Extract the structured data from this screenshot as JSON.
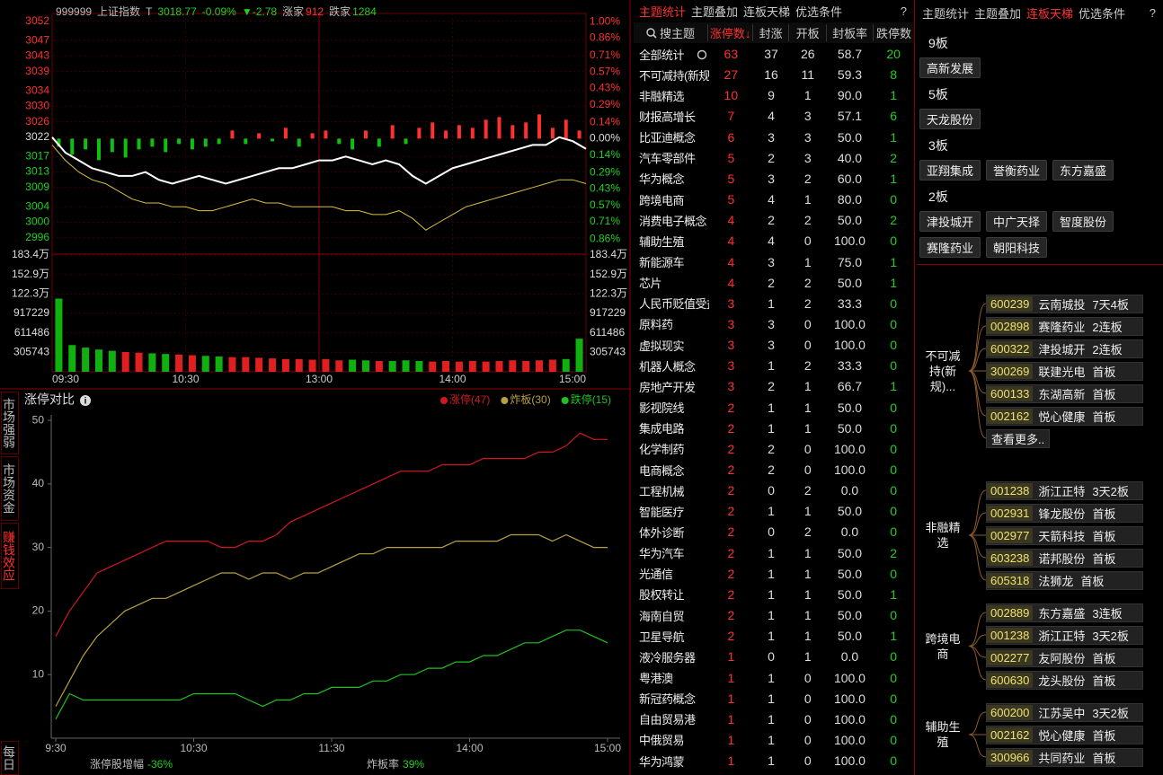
{
  "index_panel": {
    "code": "999999",
    "name": "上证指数",
    "t_label": "T",
    "price": "3018.77",
    "change_pct": "-0.09%",
    "change": "▼-2.78",
    "up_label": "涨家",
    "up_count": "912",
    "down_label": "跌家",
    "down_count": "1284"
  },
  "price_chart": {
    "type": "line",
    "ylim": [
      2992,
      3054
    ],
    "yticks": [
      3052,
      3047,
      3043,
      3039,
      3034,
      3030,
      3026,
      3022,
      3017,
      3013,
      3009,
      3004,
      3000,
      2996
    ],
    "y2lim": [
      -0.98,
      1.07
    ],
    "y2ticks": [
      {
        "value": 1.0,
        "label": "1.00%"
      },
      {
        "value": 0.86,
        "label": "0.86%"
      },
      {
        "value": 0.71,
        "label": "0.71%"
      },
      {
        "value": 0.57,
        "label": "0.57%"
      },
      {
        "value": 0.43,
        "label": "0.43%"
      },
      {
        "value": 0.29,
        "label": "0.29%"
      },
      {
        "value": 0.14,
        "label": "0.14%"
      },
      {
        "value": 0,
        "label": "0.00%"
      },
      {
        "value": -0.14,
        "label": "0.14%"
      },
      {
        "value": -0.29,
        "label": "0.29%"
      },
      {
        "value": -0.43,
        "label": "0.43%"
      },
      {
        "value": -0.57,
        "label": "0.57%"
      },
      {
        "value": -0.71,
        "label": "0.71%"
      },
      {
        "value": -0.86,
        "label": "0.86%"
      }
    ],
    "series": [
      {
        "color": "#ffffff",
        "values": [
          3022,
          3018,
          3016,
          3014,
          3013,
          3012,
          3012,
          3013,
          3011,
          3010,
          3011,
          3012,
          3011,
          3010,
          3011,
          3012,
          3013,
          3014,
          3014,
          3015,
          3016,
          3016,
          3017,
          3016,
          3015,
          3016,
          3015,
          3012,
          3010,
          3012,
          3014,
          3015,
          3016,
          3017,
          3018,
          3019,
          3020,
          3020,
          3022,
          3021,
          3019
        ]
      },
      {
        "color": "#d8c040",
        "values": [
          3020,
          3016,
          3013,
          3011,
          3010,
          3008,
          3006,
          3005,
          3005,
          3004,
          3004,
          3003,
          3003,
          3004,
          3005,
          3006,
          3005,
          3005,
          3004,
          3004,
          3004,
          3004,
          3003,
          3003,
          3002,
          3002,
          3003,
          3001,
          2998,
          3000,
          3002,
          3004,
          3005,
          3006,
          3007,
          3008,
          3009,
          3010,
          3011,
          3011,
          3010
        ]
      }
    ]
  },
  "strength_bars": {
    "type": "bar",
    "up_color": "#ff3030",
    "down_color": "#10c010",
    "values": [
      -3,
      -6,
      -4,
      -8,
      -5,
      -7,
      -4,
      -3,
      -5,
      -2,
      -4,
      -3,
      -2,
      3,
      -2,
      2,
      -1,
      4,
      -3,
      2,
      3,
      -2,
      -4,
      3,
      -3,
      5,
      -2,
      4,
      6,
      3,
      5,
      4,
      7,
      8,
      5,
      6,
      9,
      4,
      7,
      3
    ]
  },
  "volume_chart": {
    "type": "bar",
    "ylim": [
      0,
      1834458
    ],
    "yticks": [
      {
        "value": 1834458,
        "label": "183.4万"
      },
      {
        "value": 1528715,
        "label": "152.9万"
      },
      {
        "value": 1222972,
        "label": "122.3万"
      },
      917229,
      611486,
      305743
    ],
    "values": [
      1150000,
      420000,
      380000,
      350000,
      330000,
      310000,
      300000,
      290000,
      280000,
      270000,
      260000,
      250000,
      240000,
      230000,
      230000,
      220000,
      210000,
      200000,
      200000,
      190000,
      200000,
      180000,
      190000,
      180000,
      170000,
      170000,
      180000,
      170000,
      160000,
      170000,
      160000,
      170000,
      160000,
      170000,
      180000,
      170000,
      180000,
      190000,
      200000,
      520000
    ]
  },
  "time_axis": {
    "labels": [
      "09:30",
      "10:30",
      "13:00",
      "14:00",
      "15:00"
    ]
  },
  "side_tabs": [
    "市场强弱",
    "市场资金",
    "赚钱效应",
    "每日"
  ],
  "limit_chart": {
    "type": "line",
    "title": "涨停对比",
    "ylim": [
      0,
      51
    ],
    "yticks": [
      10,
      20,
      30,
      40,
      50
    ],
    "xlim": [
      0,
      240
    ],
    "xticks": [
      {
        "value": 0,
        "label": "9:30"
      },
      {
        "value": 60,
        "label": "10:30"
      },
      {
        "value": 120,
        "label": "11:30"
      },
      {
        "value": 180,
        "label": "14:00"
      },
      {
        "value": 240,
        "label": "15:00"
      }
    ],
    "series": [
      {
        "name": "涨停(47)",
        "color": "#d01820",
        "values": [
          16,
          20,
          23,
          26,
          27,
          28,
          29,
          30,
          31,
          31,
          31,
          31,
          30,
          30,
          31,
          31,
          32,
          34,
          35,
          36,
          37,
          38,
          39,
          40,
          41,
          42,
          42,
          42,
          43,
          43,
          43,
          44,
          44,
          44,
          44,
          45,
          45,
          46,
          48,
          47,
          47
        ]
      },
      {
        "name": "炸板(30)",
        "color": "#b8a040",
        "values": [
          5,
          9,
          13,
          16,
          18,
          20,
          21,
          22,
          22,
          23,
          24,
          25,
          26,
          26,
          25,
          26,
          26,
          25,
          26,
          26,
          27,
          28,
          29,
          29,
          30,
          30,
          30,
          30,
          30,
          31,
          31,
          31,
          31,
          32,
          32,
          32,
          31,
          32,
          31,
          30,
          30
        ]
      },
      {
        "name": "跌停(15)",
        "color": "#20c020",
        "values": [
          3,
          7,
          6,
          6,
          6,
          6,
          6,
          6,
          6,
          6,
          7,
          7,
          7,
          7,
          6,
          5,
          6,
          6,
          7,
          7,
          8,
          8,
          8,
          9,
          9,
          10,
          10,
          11,
          11,
          12,
          12,
          13,
          13,
          14,
          15,
          15,
          16,
          17,
          17,
          16,
          15
        ]
      }
    ],
    "footer": [
      {
        "label": "涨停股增幅",
        "value": "-36%"
      },
      {
        "label": "炸板率",
        "value": "39%"
      }
    ]
  },
  "theme_table": {
    "tabs": [
      "主题统计",
      "主题叠加",
      "连板天梯",
      "优选条件",
      "?"
    ],
    "columns": [
      "搜主题",
      "涨停数↓",
      "封涨",
      "开板",
      "封板率",
      "跌停数"
    ],
    "rows": [
      [
        "全部统计",
        "63",
        "37",
        "26",
        "58.7",
        "20"
      ],
      [
        "不可减持(新规)",
        "27",
        "16",
        "11",
        "59.3",
        "8"
      ],
      [
        "非融精选",
        "10",
        "9",
        "1",
        "90.0",
        "1"
      ],
      [
        "财报高增长",
        "7",
        "4",
        "3",
        "57.1",
        "6"
      ],
      [
        "比亚迪概念",
        "6",
        "3",
        "3",
        "50.0",
        "1"
      ],
      [
        "汽车零部件",
        "5",
        "2",
        "3",
        "40.0",
        "2"
      ],
      [
        "华为概念",
        "5",
        "3",
        "2",
        "60.0",
        "1"
      ],
      [
        "跨境电商",
        "5",
        "4",
        "1",
        "80.0",
        "0"
      ],
      [
        "消费电子概念",
        "4",
        "2",
        "2",
        "50.0",
        "2"
      ],
      [
        "辅助生殖",
        "4",
        "4",
        "0",
        "100.0",
        "0"
      ],
      [
        "新能源车",
        "4",
        "3",
        "1",
        "75.0",
        "1"
      ],
      [
        "芯片",
        "4",
        "2",
        "2",
        "50.0",
        "1"
      ],
      [
        "人民币贬值受益",
        "3",
        "1",
        "2",
        "33.3",
        "0"
      ],
      [
        "原料药",
        "3",
        "3",
        "0",
        "100.0",
        "0"
      ],
      [
        "虚拟现实",
        "3",
        "3",
        "0",
        "100.0",
        "0"
      ],
      [
        "机器人概念",
        "3",
        "1",
        "2",
        "33.3",
        "0"
      ],
      [
        "房地产开发",
        "3",
        "2",
        "1",
        "66.7",
        "1"
      ],
      [
        "影视院线",
        "2",
        "1",
        "1",
        "50.0",
        "0"
      ],
      [
        "集成电路",
        "2",
        "1",
        "1",
        "50.0",
        "0"
      ],
      [
        "化学制药",
        "2",
        "2",
        "0",
        "100.0",
        "0"
      ],
      [
        "电商概念",
        "2",
        "2",
        "0",
        "100.0",
        "0"
      ],
      [
        "工程机械",
        "2",
        "0",
        "2",
        "0.0",
        "0"
      ],
      [
        "智能医疗",
        "2",
        "1",
        "1",
        "50.0",
        "0"
      ],
      [
        "体外诊断",
        "2",
        "0",
        "2",
        "0.0",
        "0"
      ],
      [
        "华为汽车",
        "2",
        "1",
        "1",
        "50.0",
        "2"
      ],
      [
        "光通信",
        "2",
        "1",
        "1",
        "50.0",
        "0"
      ],
      [
        "股权转让",
        "2",
        "1",
        "1",
        "50.0",
        "1"
      ],
      [
        "海南自贸",
        "2",
        "1",
        "1",
        "50.0",
        "0"
      ],
      [
        "卫星导航",
        "2",
        "1",
        "1",
        "50.0",
        "1"
      ],
      [
        "液冷服务器",
        "1",
        "0",
        "1",
        "0.0",
        "0"
      ],
      [
        "粤港澳",
        "1",
        "1",
        "0",
        "100.0",
        "0"
      ],
      [
        "新冠药概念",
        "1",
        "1",
        "0",
        "100.0",
        "0"
      ],
      [
        "自由贸易港",
        "1",
        "1",
        "0",
        "100.0",
        "0"
      ],
      [
        "中俄贸易",
        "1",
        "1",
        "0",
        "100.0",
        "0"
      ],
      [
        "华为鸿蒙",
        "1",
        "1",
        "0",
        "100.0",
        "0"
      ]
    ]
  },
  "ladder": {
    "tabs": [
      "主题统计",
      "主题叠加",
      "连板天梯",
      "优选条件",
      "?"
    ],
    "levels": [
      {
        "label": "9板",
        "stocks": [
          "高新发展"
        ]
      },
      {
        "label": "5板",
        "stocks": [
          "天龙股份"
        ]
      },
      {
        "label": "3板",
        "stocks": [
          "亚翔集成",
          "誉衡药业",
          "东方嘉盛"
        ]
      },
      {
        "label": "2板",
        "stocks": [
          "津投城开",
          "中广天择",
          "智度股份",
          "赛隆药业",
          "朝阳科技"
        ]
      }
    ]
  },
  "mindmap": {
    "groups": [
      {
        "label": "不可减持(新规)...",
        "items": [
          {
            "code": "600239",
            "name": "云南城投",
            "tag": "7天4板"
          },
          {
            "code": "002898",
            "name": "赛隆药业",
            "tag": "2连板"
          },
          {
            "code": "600322",
            "name": "津投城开",
            "tag": "2连板"
          },
          {
            "code": "300269",
            "name": "联建光电",
            "tag": "首板"
          },
          {
            "code": "600133",
            "name": "东湖高新",
            "tag": "首板"
          },
          {
            "code": "002162",
            "name": "悦心健康",
            "tag": "首板"
          }
        ],
        "more": "查看更多.."
      },
      {
        "label": "非融精选",
        "items": [
          {
            "code": "001238",
            "name": "浙江正特",
            "tag": "3天2板"
          },
          {
            "code": "002931",
            "name": "锋龙股份",
            "tag": "首板"
          },
          {
            "code": "002977",
            "name": "天箭科技",
            "tag": "首板"
          },
          {
            "code": "603238",
            "name": "诺邦股份",
            "tag": "首板"
          },
          {
            "code": "605318",
            "name": "法狮龙",
            "tag": "首板"
          }
        ]
      },
      {
        "label": "跨境电商",
        "items": [
          {
            "code": "002889",
            "name": "东方嘉盛",
            "tag": "3连板"
          },
          {
            "code": "001238",
            "name": "浙江正特",
            "tag": "3天2板"
          },
          {
            "code": "002277",
            "name": "友阿股份",
            "tag": "首板"
          },
          {
            "code": "600630",
            "name": "龙头股份",
            "tag": "首板"
          }
        ]
      },
      {
        "label": "辅助生殖",
        "items": [
          {
            "code": "600200",
            "name": "江苏吴中",
            "tag": "3天2板"
          },
          {
            "code": "002162",
            "name": "悦心健康",
            "tag": "首板"
          },
          {
            "code": "300966",
            "name": "共同药业",
            "tag": "首板"
          }
        ]
      }
    ]
  }
}
